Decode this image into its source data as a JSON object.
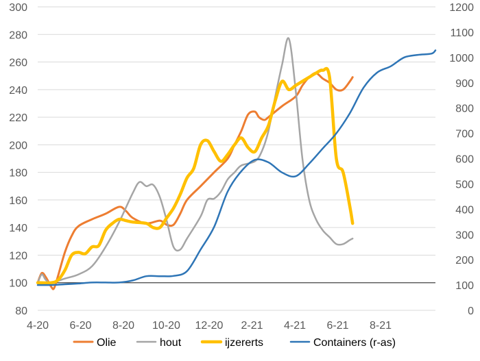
{
  "chart_data": {
    "type": "line",
    "grid": true,
    "legend_position": "bottom",
    "x_ticks": [
      "4-20",
      "6-20",
      "8-20",
      "10-20",
      "12-20",
      "2-21",
      "4-21",
      "6-21",
      "8-21"
    ],
    "y_left": {
      "min": 80,
      "max": 300,
      "step": 20,
      "ticks": [
        "80",
        "100",
        "120",
        "140",
        "160",
        "180",
        "200",
        "220",
        "240",
        "260",
        "280",
        "300"
      ]
    },
    "y_right": {
      "min": 0,
      "max": 1200,
      "step": 100,
      "ticks": [
        "0",
        "100",
        "200",
        "300",
        "400",
        "500",
        "600",
        "700",
        "800",
        "900",
        "1000",
        "1100",
        "1200"
      ]
    },
    "baseline": 100,
    "series": [
      {
        "name": "Olie",
        "color": "#ED7D31",
        "axis": "left",
        "width": 3,
        "points": [
          [
            0,
            100
          ],
          [
            0.3,
            107
          ],
          [
            0.6,
            104
          ],
          [
            1,
            97
          ],
          [
            1.2,
            96
          ],
          [
            1.5,
            105
          ],
          [
            2,
            122
          ],
          [
            2.5,
            134
          ],
          [
            3,
            141
          ],
          [
            4,
            146
          ],
          [
            5,
            150
          ],
          [
            6,
            155
          ],
          [
            6.5,
            152
          ],
          [
            7,
            147
          ],
          [
            8,
            143
          ],
          [
            9,
            145
          ],
          [
            9.5,
            142
          ],
          [
            10,
            142
          ],
          [
            10.5,
            150
          ],
          [
            11,
            160
          ],
          [
            12,
            170
          ],
          [
            13,
            180
          ],
          [
            14,
            190
          ],
          [
            14.5,
            200
          ],
          [
            15,
            210
          ],
          [
            15.5,
            222
          ],
          [
            16,
            224
          ],
          [
            16.3,
            220
          ],
          [
            16.7,
            218
          ],
          [
            17,
            220
          ],
          [
            18,
            228
          ],
          [
            19,
            235
          ],
          [
            19.5,
            243
          ],
          [
            20,
            249
          ],
          [
            20.5,
            252
          ],
          [
            21,
            248
          ],
          [
            21.5,
            245
          ],
          [
            22,
            240
          ],
          [
            22.5,
            240
          ],
          [
            23,
            246
          ],
          [
            23.2,
            249
          ]
        ]
      },
      {
        "name": "hout",
        "color": "#A5A5A5",
        "axis": "left",
        "width": 2.5,
        "points": [
          [
            0,
            100
          ],
          [
            0.3,
            106
          ],
          [
            0.6,
            102
          ],
          [
            1,
            100
          ],
          [
            2,
            103
          ],
          [
            3,
            106
          ],
          [
            4,
            112
          ],
          [
            5,
            126
          ],
          [
            6,
            144
          ],
          [
            7,
            165
          ],
          [
            7.5,
            173
          ],
          [
            8,
            170
          ],
          [
            8.5,
            171
          ],
          [
            9,
            162
          ],
          [
            9.5,
            145
          ],
          [
            10,
            126
          ],
          [
            10.5,
            124
          ],
          [
            11,
            132
          ],
          [
            12,
            148
          ],
          [
            12.5,
            160
          ],
          [
            13,
            161
          ],
          [
            13.5,
            166
          ],
          [
            14,
            175
          ],
          [
            14.5,
            180
          ],
          [
            15,
            185
          ],
          [
            16,
            188
          ],
          [
            16.5,
            195
          ],
          [
            17,
            210
          ],
          [
            17.5,
            235
          ],
          [
            18,
            258
          ],
          [
            18.5,
            277
          ],
          [
            19,
            240
          ],
          [
            19.5,
            190
          ],
          [
            20,
            160
          ],
          [
            20.5,
            146
          ],
          [
            21,
            138
          ],
          [
            21.5,
            133
          ],
          [
            22,
            128
          ],
          [
            22.5,
            128
          ],
          [
            23,
            131
          ],
          [
            23.2,
            132
          ]
        ]
      },
      {
        "name": "ijzererts",
        "color": "#FFC000",
        "axis": "left",
        "width": 4.5,
        "points": [
          [
            0,
            100
          ],
          [
            1,
            100
          ],
          [
            1.5,
            102
          ],
          [
            2,
            109
          ],
          [
            2.5,
            120
          ],
          [
            3,
            122
          ],
          [
            3.5,
            121
          ],
          [
            4,
            126
          ],
          [
            4.5,
            127
          ],
          [
            5,
            138
          ],
          [
            5.5,
            143
          ],
          [
            6,
            146
          ],
          [
            6.5,
            145
          ],
          [
            7,
            144
          ],
          [
            8,
            143
          ],
          [
            8.5,
            140
          ],
          [
            9,
            140
          ],
          [
            9.5,
            147
          ],
          [
            10,
            154
          ],
          [
            10.5,
            164
          ],
          [
            11,
            176
          ],
          [
            11.5,
            183
          ],
          [
            12,
            200
          ],
          [
            12.5,
            203
          ],
          [
            13,
            195
          ],
          [
            13.5,
            188
          ],
          [
            14,
            193
          ],
          [
            14.5,
            200
          ],
          [
            15,
            205
          ],
          [
            15.5,
            198
          ],
          [
            16,
            195
          ],
          [
            16.5,
            205
          ],
          [
            17,
            214
          ],
          [
            17.5,
            232
          ],
          [
            18,
            246
          ],
          [
            18.5,
            240
          ],
          [
            19,
            243
          ],
          [
            19.5,
            246
          ],
          [
            20,
            249
          ],
          [
            20.5,
            252
          ],
          [
            21,
            254
          ],
          [
            21.5,
            249
          ],
          [
            22,
            190
          ],
          [
            22.5,
            180
          ],
          [
            23,
            155
          ],
          [
            23.2,
            143
          ]
        ]
      },
      {
        "name": "Containers (r-as)",
        "color": "#2E75B6",
        "axis": "right",
        "width": 2.5,
        "points": [
          [
            0,
            100
          ],
          [
            1,
            100
          ],
          [
            2,
            103
          ],
          [
            3,
            106
          ],
          [
            4,
            110
          ],
          [
            5,
            110
          ],
          [
            6,
            110
          ],
          [
            7,
            118
          ],
          [
            8,
            135
          ],
          [
            9,
            135
          ],
          [
            10,
            136
          ],
          [
            11,
            155
          ],
          [
            12,
            240
          ],
          [
            13,
            330
          ],
          [
            14,
            470
          ],
          [
            15,
            550
          ],
          [
            16,
            595
          ],
          [
            17,
            585
          ],
          [
            18,
            545
          ],
          [
            19,
            530
          ],
          [
            20,
            580
          ],
          [
            21,
            640
          ],
          [
            22,
            700
          ],
          [
            23,
            780
          ],
          [
            24,
            880
          ],
          [
            25,
            940
          ],
          [
            26,
            965
          ],
          [
            27,
            1000
          ],
          [
            28,
            1010
          ],
          [
            29,
            1015
          ],
          [
            29.3,
            1028
          ]
        ]
      }
    ]
  }
}
